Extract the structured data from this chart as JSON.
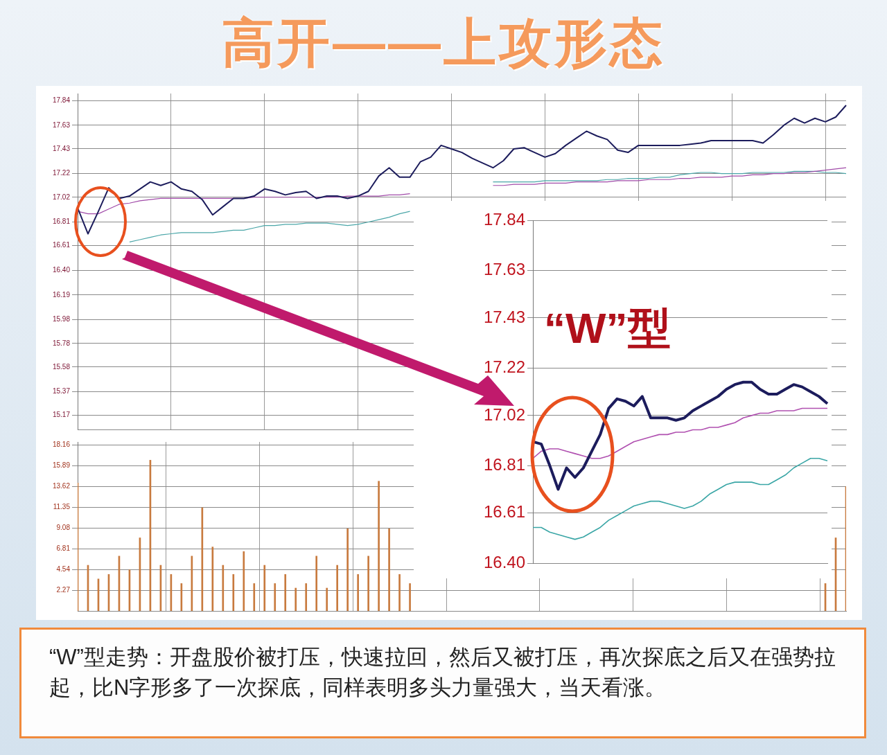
{
  "chart_data": [
    {
      "type": "line",
      "title": "高开——上攻形态",
      "annotations": [
        "“W”型走势：开盘股价被打压，快速拉回，然后又被打压，再次探底之后又在强势拉起，比N字形多了一次探底，同样表明多头力量强大，当天看涨。"
      ],
      "categories": [
        null,
        null,
        null,
        null,
        null,
        null,
        null,
        null,
        null,
        null,
        null,
        null,
        null,
        null,
        null,
        null,
        null,
        null,
        null,
        null,
        null,
        null,
        null,
        null,
        null,
        null,
        null,
        null,
        null,
        null,
        null,
        null,
        null,
        null,
        null,
        null,
        null,
        null,
        null,
        null,
        null,
        null,
        null,
        null,
        null,
        null,
        null,
        null,
        null,
        null,
        null,
        null,
        null,
        null,
        null,
        null,
        null,
        null,
        null,
        null,
        null,
        null,
        null,
        null,
        null,
        null,
        null,
        null,
        null,
        null,
        null,
        null,
        null,
        null,
        null
      ],
      "series": [
        {
          "color": "#1c1c5c",
          "values": [
            16.93,
            16.71,
            16.9,
            17.1,
            17.01,
            17.03,
            17.09,
            17.15,
            17.12,
            17.15,
            17.09,
            17.07,
            17.0,
            16.87,
            16.94,
            17.01,
            17.01,
            17.03,
            17.09,
            17.07,
            17.04,
            17.06,
            17.07,
            17.01,
            17.03,
            17.03,
            17.01,
            17.03,
            17.07,
            17.2,
            17.27,
            17.19,
            17.19,
            17.32,
            17.36,
            17.46,
            17.43,
            17.4,
            17.35,
            17.31,
            17.27,
            17.33,
            17.43,
            17.44,
            17.4,
            17.36,
            17.39,
            17.46,
            17.52,
            17.58,
            17.54,
            17.51,
            17.42,
            17.4,
            17.46,
            17.46,
            17.46,
            17.46,
            17.46,
            17.47,
            17.48,
            17.5,
            17.5,
            17.5,
            17.5,
            17.5,
            17.48,
            17.55,
            17.63,
            17.69,
            17.65,
            17.69,
            17.66,
            17.7,
            17.8
          ]
        },
        {
          "color": "#a04aa8",
          "values": [
            16.9,
            16.88,
            16.88,
            16.92,
            16.96,
            16.97,
            16.99,
            17.0,
            17.01,
            17.01,
            17.01,
            17.01,
            17.01,
            17.01,
            17.01,
            17.01,
            17.01,
            17.02,
            17.02,
            17.02,
            17.02,
            17.02,
            17.02,
            17.02,
            17.02,
            17.02,
            17.03,
            17.03,
            17.03,
            17.03,
            17.04,
            17.04,
            17.05,
            null,
            null,
            null,
            null,
            null,
            null,
            null,
            17.12,
            17.12,
            17.13,
            17.13,
            17.13,
            17.14,
            17.14,
            17.14,
            17.15,
            17.15,
            17.15,
            17.15,
            17.16,
            17.16,
            17.16,
            17.17,
            17.17,
            17.17,
            17.18,
            17.18,
            17.19,
            17.19,
            17.19,
            17.2,
            17.2,
            17.21,
            17.21,
            17.22,
            17.22,
            17.23,
            17.23,
            17.24,
            17.25,
            17.26,
            17.27
          ]
        },
        {
          "color": "#4aa6a8",
          "values": [
            null,
            null,
            null,
            null,
            null,
            16.64,
            16.66,
            16.68,
            16.7,
            16.71,
            16.72,
            16.72,
            16.72,
            16.72,
            16.73,
            16.74,
            16.74,
            16.76,
            16.78,
            16.78,
            16.79,
            16.79,
            16.8,
            16.8,
            16.8,
            16.79,
            16.78,
            16.79,
            16.81,
            16.83,
            16.85,
            16.88,
            16.9,
            null,
            null,
            null,
            null,
            null,
            null,
            null,
            17.15,
            17.15,
            17.15,
            17.15,
            17.15,
            17.16,
            17.16,
            17.16,
            17.16,
            17.16,
            17.16,
            17.17,
            17.17,
            17.18,
            17.18,
            17.18,
            17.19,
            17.19,
            17.21,
            17.22,
            17.23,
            17.23,
            17.22,
            17.22,
            17.22,
            17.23,
            17.23,
            17.23,
            17.23,
            17.24,
            17.24,
            17.24,
            17.23,
            17.23,
            17.22
          ]
        }
      ],
      "ylim": [
        15.05,
        17.9
      ],
      "yticks": [
        17.84,
        17.63,
        17.43,
        17.22,
        17.02,
        16.81,
        16.61,
        {
          "value": 16.4,
          "label": "16.40"
        },
        16.19,
        15.98,
        15.78,
        15.58,
        15.37,
        15.17
      ],
      "grid": true,
      "tick_labels": "y"
    },
    {
      "type": "bar",
      "categories": [
        null,
        null,
        null,
        null,
        null,
        null,
        null,
        null,
        null,
        null,
        null,
        null,
        null,
        null,
        null,
        null,
        null,
        null,
        null,
        null,
        null,
        null,
        null,
        null,
        null,
        null,
        null,
        null,
        null,
        null,
        null,
        null,
        null,
        null,
        null,
        null,
        null,
        null,
        null,
        null,
        null,
        null,
        null,
        null,
        null,
        null,
        null,
        null,
        null,
        null,
        null,
        null,
        null,
        null,
        null,
        null,
        null,
        null,
        null,
        null,
        null,
        null,
        null,
        null,
        null,
        null,
        null,
        null,
        null,
        null,
        null,
        null,
        null,
        null,
        null
      ],
      "series": [
        {
          "color": "#c87a3e",
          "values": [
            14.0,
            5.0,
            3.5,
            4.0,
            6.0,
            4.5,
            8.0,
            16.5,
            5.0,
            4.0,
            3.0,
            6.0,
            11.3,
            7.0,
            5.0,
            4.0,
            6.5,
            3.0,
            5.0,
            3.0,
            4.0,
            2.5,
            3.0,
            6.0,
            2.5,
            5.0,
            9.0,
            4.0,
            6.0,
            14.2,
            9.0,
            4.0,
            3.0,
            null,
            null,
            null,
            null,
            null,
            null,
            null,
            null,
            null,
            null,
            null,
            null,
            null,
            null,
            null,
            null,
            null,
            null,
            null,
            null,
            null,
            null,
            null,
            null,
            null,
            null,
            null,
            null,
            null,
            null,
            null,
            null,
            null,
            null,
            null,
            null,
            null,
            null,
            null,
            3.0,
            8.0,
            13.6
          ]
        }
      ],
      "ylim": [
        0,
        18.5
      ],
      "yticks": [
        2.27,
        4.54,
        6.81,
        9.08,
        11.35,
        13.62,
        15.89,
        18.16
      ],
      "grid": true,
      "tick_labels": "y"
    },
    {
      "type": "line",
      "annotations": [
        "“W”型"
      ],
      "categories": [
        null,
        null,
        null,
        null,
        null,
        null,
        null,
        null,
        null,
        null,
        null,
        null,
        null,
        null,
        null,
        null,
        null,
        null,
        null,
        null,
        null,
        null,
        null,
        null,
        null,
        null,
        null,
        null,
        null,
        null,
        null,
        null,
        null,
        null,
        null,
        null
      ],
      "series": [
        {
          "color": "#1c1c5c",
          "values": [
            16.91,
            16.9,
            16.81,
            16.71,
            16.8,
            16.76,
            16.8,
            16.87,
            16.94,
            17.05,
            17.09,
            17.08,
            17.06,
            17.1,
            17.01,
            17.01,
            17.01,
            17.0,
            17.01,
            17.04,
            17.06,
            17.08,
            17.1,
            17.13,
            17.15,
            17.16,
            17.16,
            17.13,
            17.11,
            17.11,
            17.13,
            17.15,
            17.14,
            17.12,
            17.1,
            17.07
          ]
        },
        {
          "color": "#b050b0",
          "values": [
            16.84,
            16.87,
            16.88,
            16.88,
            16.87,
            16.86,
            16.85,
            16.84,
            16.84,
            16.85,
            16.87,
            16.89,
            16.91,
            16.92,
            16.93,
            16.94,
            16.94,
            16.95,
            16.95,
            16.96,
            16.96,
            16.97,
            16.97,
            16.98,
            16.99,
            17.01,
            17.02,
            17.03,
            17.03,
            17.04,
            17.04,
            17.04,
            17.05,
            17.05,
            17.05,
            17.05
          ]
        },
        {
          "color": "#3aa6a6",
          "values": [
            16.55,
            16.55,
            16.53,
            16.52,
            16.51,
            16.5,
            16.51,
            16.53,
            16.55,
            16.58,
            16.6,
            16.62,
            16.64,
            16.65,
            16.66,
            16.66,
            16.65,
            16.64,
            16.63,
            16.64,
            16.66,
            16.69,
            16.71,
            16.73,
            16.74,
            16.74,
            16.74,
            16.73,
            16.73,
            16.75,
            16.77,
            16.8,
            16.82,
            16.84,
            16.84,
            16.83
          ]
        }
      ],
      "ylim": [
        16.4,
        17.84
      ],
      "yticks": [
        17.84,
        17.63,
        17.43,
        17.22,
        17.02,
        16.81,
        16.61,
        {
          "value": 16.4,
          "label": "16.40"
        }
      ],
      "grid": "y",
      "tick_labels": "y"
    }
  ]
}
